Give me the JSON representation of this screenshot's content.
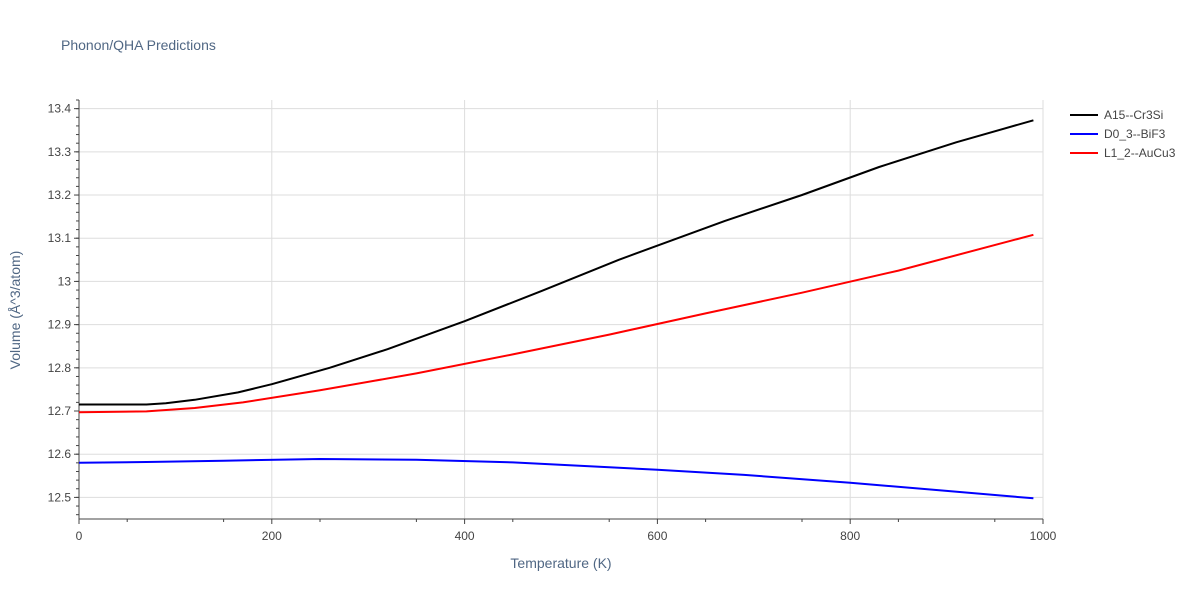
{
  "chart_data": {
    "type": "line",
    "title": "Phonon/QHA Predictions",
    "xlabel": "Temperature (K)",
    "ylabel": "Volume (Å^3/atom)",
    "xlim": [
      0,
      1000
    ],
    "ylim": [
      12.45,
      13.42
    ],
    "xticks": [
      0,
      200,
      400,
      600,
      800,
      1000
    ],
    "xtick_labels": [
      "0",
      "200",
      "400",
      "600",
      "800",
      "1000"
    ],
    "yticks": [
      12.5,
      12.6,
      12.7,
      12.8,
      12.9,
      13.0,
      13.1,
      13.2,
      13.3,
      13.4
    ],
    "ytick_labels": [
      "12.5",
      "12.6",
      "12.7",
      "12.8",
      "12.9",
      "13",
      "13.1",
      "13.2",
      "13.3",
      "13.4"
    ],
    "grid": true,
    "legend_position": "top-right",
    "series": [
      {
        "name": "A15--Cr3Si",
        "color": "#000000",
        "x": [
          0,
          30,
          70,
          90,
          120,
          165,
          200,
          260,
          320,
          400,
          480,
          560,
          670,
          750,
          830,
          910,
          990
        ],
        "y": [
          12.715,
          12.715,
          12.715,
          12.718,
          12.726,
          12.743,
          12.762,
          12.8,
          12.843,
          12.908,
          12.978,
          13.05,
          13.14,
          13.2,
          13.265,
          13.322,
          13.373
        ]
      },
      {
        "name": "D0_3--BiF3",
        "color": "#0000ff",
        "x": [
          0,
          70,
          150,
          250,
          350,
          450,
          550,
          600,
          690,
          800,
          900,
          990
        ],
        "y": [
          12.58,
          12.582,
          12.585,
          12.589,
          12.587,
          12.581,
          12.57,
          12.564,
          12.552,
          12.534,
          12.515,
          12.498
        ]
      },
      {
        "name": "L1_2--AuCu3",
        "color": "#ff0000",
        "x": [
          0,
          70,
          120,
          170,
          250,
          350,
          450,
          550,
          650,
          750,
          850,
          990
        ],
        "y": [
          12.697,
          12.699,
          12.707,
          12.72,
          12.748,
          12.787,
          12.831,
          12.877,
          12.926,
          12.974,
          13.025,
          13.108
        ]
      }
    ]
  }
}
